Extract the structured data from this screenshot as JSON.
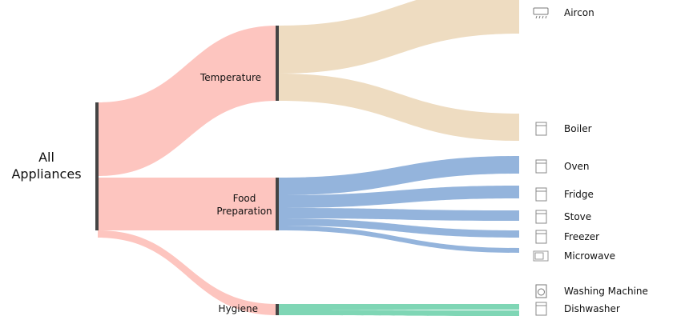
{
  "chart_data": {
    "type": "sankey",
    "root": {
      "name": "All Appliances",
      "line1": "All",
      "line2": "Appliances"
    },
    "categories": [
      {
        "name": "Temperature",
        "color": "#eedcc1",
        "children": [
          {
            "name": "Aircon",
            "value": 60,
            "icon": "aircon-icon"
          },
          {
            "name": "Boiler",
            "value": 34,
            "icon": "boiler-icon"
          }
        ]
      },
      {
        "name": "Food Preparation",
        "line1": "Food",
        "line2": "Preparation",
        "color": "#94b4dc",
        "children": [
          {
            "name": "Oven",
            "value": 22,
            "icon": "oven-icon"
          },
          {
            "name": "Fridge",
            "value": 16,
            "icon": "fridge-icon"
          },
          {
            "name": "Stove",
            "value": 13,
            "icon": "stove-icon"
          },
          {
            "name": "Freezer",
            "value": 9,
            "icon": "freezer-icon"
          },
          {
            "name": "Microwave",
            "value": 6,
            "icon": "microwave-icon"
          }
        ]
      },
      {
        "name": "Hygiene",
        "color": "#7fd6b5",
        "children": [
          {
            "name": "Washing Machine",
            "value": 7,
            "icon": "washing-machine-icon"
          },
          {
            "name": "Dishwasher",
            "value": 7,
            "icon": "dishwasher-icon"
          }
        ]
      }
    ],
    "root_link_color": "#fdc5bf",
    "node_color": "#444444"
  }
}
